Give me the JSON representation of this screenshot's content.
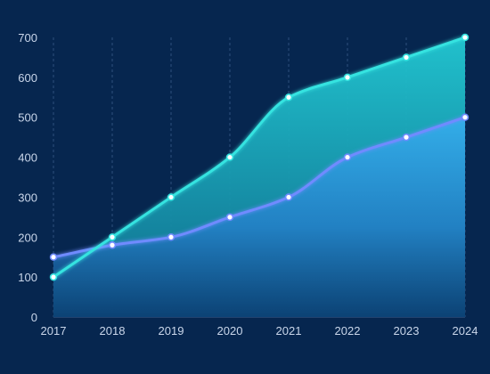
{
  "chart_data": {
    "type": "area",
    "categories": [
      "2017",
      "2018",
      "2019",
      "2020",
      "2021",
      "2022",
      "2023",
      "2024"
    ],
    "series": [
      {
        "values": [
          100,
          200,
          300,
          400,
          550,
          600,
          650,
          700
        ],
        "color": "#35e3e0"
      },
      {
        "values": [
          150,
          180,
          200,
          250,
          300,
          400,
          450,
          500
        ],
        "color": "#6f8bff"
      }
    ],
    "ylim": [
      0,
      700
    ],
    "yticks": [
      0,
      100,
      200,
      300,
      400,
      500,
      600,
      700
    ],
    "grid": "vertical-dashed",
    "background": "#06264f",
    "lower_area_color": "#2ea6e6",
    "upper_area_color": "#1fc3cf"
  }
}
